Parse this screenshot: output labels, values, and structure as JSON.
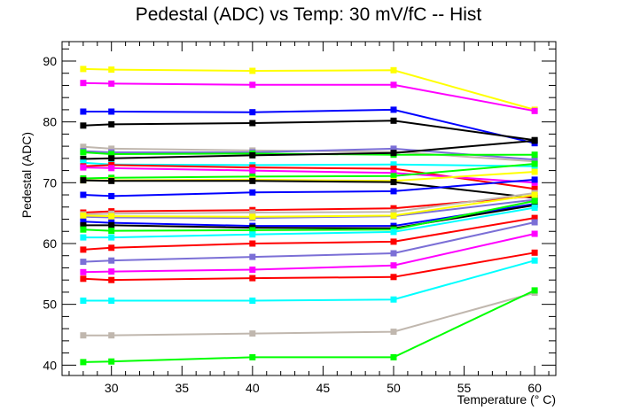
{
  "chart_data": {
    "type": "line",
    "title": "Pedestal (ADC) vs Temp: 30 mV/fC -- Hist",
    "xlabel": "Temperature (° C)",
    "ylabel": "Pedestal (ADC)",
    "xlim": [
      26.5,
      61.5
    ],
    "ylim": [
      38.3,
      93.2
    ],
    "x": [
      28,
      30,
      40,
      50,
      60
    ],
    "x_ticks": [
      30,
      35,
      40,
      45,
      50,
      55,
      60
    ],
    "y_ticks": [
      40,
      50,
      60,
      70,
      80,
      90
    ],
    "grid": false,
    "legend": "none",
    "series": [
      {
        "color": "#ffff00",
        "values": [
          88.7,
          88.6,
          88.4,
          88.5,
          82.0
        ]
      },
      {
        "color": "#ff00ff",
        "values": [
          86.4,
          86.3,
          86.1,
          86.1,
          81.8
        ]
      },
      {
        "color": "#0000ff",
        "values": [
          81.7,
          81.7,
          81.6,
          82.0,
          76.5
        ]
      },
      {
        "color": "#000000",
        "values": [
          79.4,
          79.6,
          79.8,
          80.2,
          77.0
        ]
      },
      {
        "color": "#c0b7ae",
        "values": [
          75.9,
          75.6,
          75.3,
          75.1,
          73.5
        ]
      },
      {
        "color": "#7b6fd6",
        "values": [
          75.2,
          75.0,
          75.0,
          75.6,
          73.8
        ]
      },
      {
        "color": "#00ff00",
        "values": [
          75.0,
          74.7,
          74.8,
          74.6,
          74.6
        ]
      },
      {
        "color": "#000000",
        "values": [
          73.9,
          74.0,
          74.5,
          74.9,
          76.9
        ]
      },
      {
        "color": "#00ffff",
        "values": [
          73.3,
          73.0,
          72.9,
          73.0,
          72.7
        ]
      },
      {
        "color": "#ff0000",
        "values": [
          72.7,
          72.9,
          72.5,
          72.3,
          69.0
        ]
      },
      {
        "color": "#ff00ff",
        "values": [
          72.5,
          72.4,
          72.0,
          71.6,
          70.0
        ]
      },
      {
        "color": "#00ff00",
        "values": [
          70.7,
          70.8,
          71.0,
          71.1,
          73.1
        ]
      },
      {
        "color": "#ffff00",
        "values": [
          70.4,
          70.4,
          70.5,
          70.3,
          71.8
        ]
      },
      {
        "color": "#000000",
        "values": [
          70.4,
          70.3,
          70.3,
          70.1,
          67.5
        ]
      },
      {
        "color": "#0000ff",
        "values": [
          68.0,
          67.8,
          68.4,
          68.6,
          70.5
        ]
      },
      {
        "color": "#ff0000",
        "values": [
          65.1,
          65.3,
          65.5,
          65.8,
          67.8
        ]
      },
      {
        "color": "#c0b7ae",
        "values": [
          64.8,
          64.9,
          65.1,
          65.2,
          68.3
        ]
      },
      {
        "color": "#7b6fd6",
        "values": [
          64.4,
          64.3,
          64.2,
          64.5,
          67.2
        ]
      },
      {
        "color": "#ffff00",
        "values": [
          64.6,
          64.5,
          64.4,
          64.6,
          68.0
        ]
      },
      {
        "color": "#0000ff",
        "values": [
          63.6,
          63.4,
          62.9,
          62.9,
          66.5
        ]
      },
      {
        "color": "#000000",
        "values": [
          63.0,
          63.0,
          62.6,
          62.5,
          66.3
        ]
      },
      {
        "color": "#00ff00",
        "values": [
          62.3,
          62.1,
          62.2,
          62.3,
          67.0
        ]
      },
      {
        "color": "#00ffff",
        "values": [
          61.0,
          61.0,
          61.5,
          61.9,
          65.9
        ]
      },
      {
        "color": "#ff0000",
        "values": [
          59.0,
          59.3,
          60.0,
          60.3,
          64.2
        ]
      },
      {
        "color": "#7b6fd6",
        "values": [
          57.0,
          57.2,
          57.8,
          58.4,
          63.5
        ]
      },
      {
        "color": "#ff00ff",
        "values": [
          55.3,
          55.4,
          55.7,
          56.4,
          61.6
        ]
      },
      {
        "color": "#ff0000",
        "values": [
          54.2,
          54.0,
          54.3,
          54.5,
          58.5
        ]
      },
      {
        "color": "#00ffff",
        "values": [
          50.6,
          50.6,
          50.6,
          50.8,
          57.2
        ]
      },
      {
        "color": "#c0b7ae",
        "values": [
          44.9,
          44.9,
          45.2,
          45.5,
          51.9
        ]
      },
      {
        "color": "#00ff00",
        "values": [
          40.5,
          40.6,
          41.3,
          41.3,
          52.3
        ]
      }
    ]
  }
}
